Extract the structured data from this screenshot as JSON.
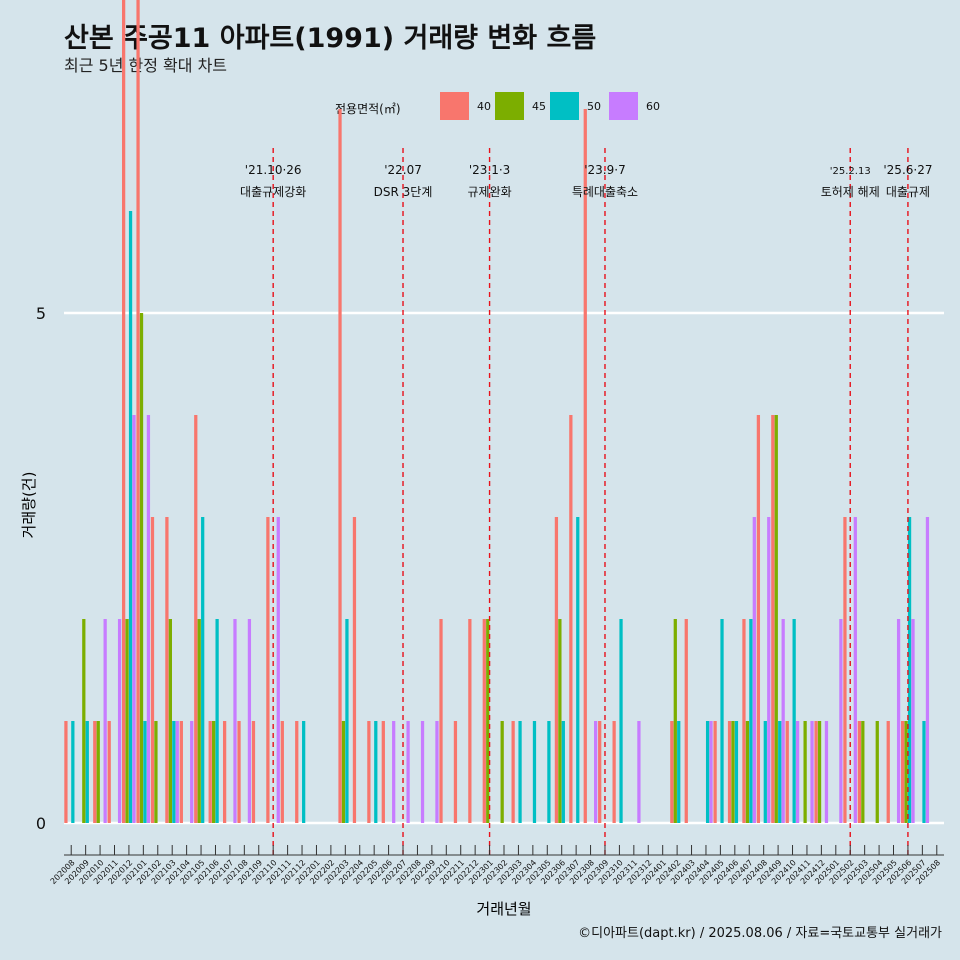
{
  "title": "산본 주공11 아파트(1991) 거래량 변화 흐름",
  "subtitle": "최근 5년 한정 확대 차트",
  "caption": "©디아파트(dapt.kr) / 2025.08.06 / 자료=국토교통부 실거래가",
  "legend": {
    "title": "전용면적(㎡)",
    "items": [
      {
        "label": "40",
        "color": "#f8766d"
      },
      {
        "label": "45",
        "color": "#7cae00"
      },
      {
        "label": "50",
        "color": "#00bfc4"
      },
      {
        "label": "60",
        "color": "#c77cff"
      }
    ]
  },
  "chart_data": {
    "type": "bar",
    "title": "산본 주공11 아파트(1991) 거래량 변화 흐름",
    "xlabel": "거래년월",
    "ylabel": "거래량(건)",
    "ylim": [
      -0.5,
      12.5
    ],
    "yticks": [
      0,
      5,
      10
    ],
    "categories": [
      "202008",
      "202009",
      "202010",
      "202011",
      "202012",
      "202101",
      "202102",
      "202103",
      "202104",
      "202105",
      "202106",
      "202107",
      "202108",
      "202109",
      "202110",
      "202111",
      "202112",
      "202201",
      "202202",
      "202203",
      "202204",
      "202205",
      "202206",
      "202207",
      "202208",
      "202209",
      "202210",
      "202211",
      "202212",
      "202301",
      "202302",
      "202303",
      "202304",
      "202305",
      "202306",
      "202307",
      "202308",
      "202309",
      "202310",
      "202311",
      "202312",
      "202401",
      "202402",
      "202403",
      "202404",
      "202405",
      "202406",
      "202407",
      "202408",
      "202409",
      "202410",
      "202411",
      "202412",
      "202501",
      "202502",
      "202503",
      "202504",
      "202505",
      "202506",
      "202507",
      "202508"
    ],
    "tick_labels": [
      "202008",
      "202009",
      "202010",
      "202011",
      "202012",
      "202101",
      "202102",
      "202103",
      "202104",
      "202105",
      "202106",
      "202107",
      "202108",
      "202109",
      "202110",
      "202111",
      "202112",
      "202201",
      "202202",
      "202203",
      "202204",
      "202205",
      "202206",
      "202207",
      "202208",
      "202209",
      "202210",
      "202211",
      "202212",
      "202301",
      "202302",
      "202303",
      "202304",
      "202305",
      "202306",
      "202307",
      "202308",
      "202309",
      "202310",
      "202311",
      "202312",
      "202401",
      "202402",
      "202403",
      "202404",
      "202405",
      "202406",
      "202407",
      "202408",
      "202409",
      "202410",
      "202411",
      "202412",
      "202501",
      "202502",
      "202503",
      "202504",
      "202505",
      "202506",
      "202507",
      "202508"
    ],
    "series": [
      {
        "name": "40",
        "color": "#f8766d",
        "values": [
          1,
          0,
          1,
          1,
          9,
          12,
          3,
          3,
          1,
          4,
          1,
          1,
          1,
          1,
          3,
          1,
          1,
          0,
          0,
          7,
          3,
          1,
          1,
          0,
          0,
          0,
          2,
          1,
          2,
          2,
          0,
          1,
          0,
          0,
          3,
          4,
          7,
          1,
          1,
          0,
          0,
          0,
          1,
          2,
          0,
          1,
          1,
          2,
          4,
          4,
          1,
          0,
          1,
          0,
          3,
          1,
          0,
          1,
          1,
          0,
          0
        ]
      },
      {
        "name": "45",
        "color": "#7cae00",
        "values": [
          0,
          2,
          1,
          0,
          2,
          5,
          1,
          2,
          0,
          2,
          1,
          0,
          0,
          0,
          0,
          0,
          0,
          0,
          0,
          1,
          0,
          0,
          0,
          0,
          0,
          0,
          0,
          0,
          0,
          2,
          1,
          0,
          0,
          0,
          2,
          0,
          0,
          0,
          0,
          0,
          0,
          0,
          2,
          0,
          0,
          0,
          1,
          1,
          0,
          4,
          0,
          1,
          1,
          0,
          0,
          1,
          1,
          0,
          1,
          0,
          0
        ]
      },
      {
        "name": "50",
        "color": "#00bfc4",
        "values": [
          1,
          1,
          0,
          0,
          6,
          1,
          0,
          1,
          0,
          3,
          2,
          0,
          0,
          0,
          0,
          0,
          1,
          0,
          0,
          2,
          0,
          1,
          0,
          0,
          0,
          0,
          0,
          0,
          0,
          0,
          0,
          1,
          1,
          1,
          1,
          3,
          0,
          0,
          2,
          0,
          0,
          0,
          1,
          0,
          1,
          2,
          1,
          2,
          1,
          1,
          2,
          0,
          0,
          0,
          0,
          0,
          0,
          0,
          3,
          1,
          0
        ]
      },
      {
        "name": "60",
        "color": "#c77cff",
        "values": [
          0,
          0,
          2,
          2,
          4,
          4,
          0,
          1,
          1,
          0,
          0,
          2,
          2,
          0,
          3,
          0,
          0,
          0,
          0,
          0,
          0,
          0,
          1,
          1,
          1,
          1,
          0,
          0,
          0,
          0,
          0,
          0,
          0,
          0,
          0,
          0,
          1,
          0,
          0,
          1,
          0,
          0,
          0,
          0,
          1,
          0,
          0,
          3,
          3,
          2,
          1,
          1,
          1,
          2,
          3,
          0,
          0,
          2,
          2,
          3,
          0
        ]
      }
    ],
    "events": [
      {
        "date": "202110",
        "line1": "'21.10·26",
        "line2": "대출규제강화"
      },
      {
        "date": "202207",
        "line1": "'22.07",
        "line2": "DSR 3단계"
      },
      {
        "date": "202301",
        "line1": "'23.1·3",
        "line2": "규제완화"
      },
      {
        "date": "202309",
        "line1": "'23.9·7",
        "line2": "특례대출축소"
      },
      {
        "date": "202502",
        "line1": "'25.2.13",
        "line2": "토허제 해제"
      },
      {
        "date": "202506",
        "line1": "'25.6·27",
        "line2": "대출규제"
      }
    ]
  }
}
